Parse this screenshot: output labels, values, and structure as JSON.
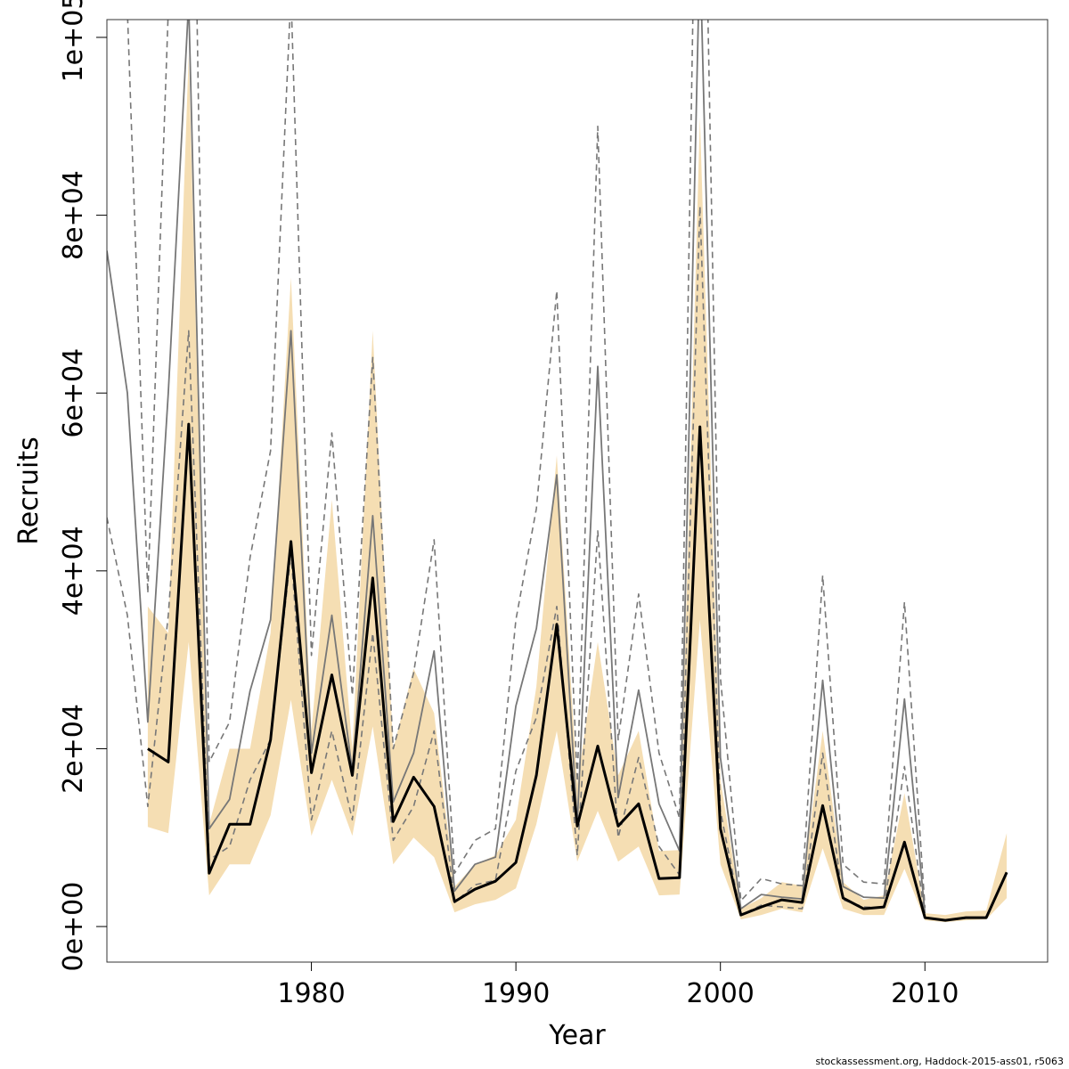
{
  "chart_data": {
    "type": "line",
    "xlabel": "Year",
    "ylabel": "Recruits",
    "xlim": [
      1970,
      2016
    ],
    "ylim": [
      -4000,
      102000
    ],
    "x_ticks": [
      1980,
      1990,
      2000,
      2010
    ],
    "x_tick_labels": [
      "1980",
      "1990",
      "2000",
      "2010"
    ],
    "y_ticks": [
      0,
      20000,
      40000,
      60000,
      80000,
      100000
    ],
    "y_tick_labels": [
      "0e+00",
      "2e+04",
      "4e+04",
      "6e+04",
      "8e+04",
      "1e+05"
    ],
    "grid": false,
    "legend": "none",
    "colors": {
      "band": "#f5deb3",
      "estimate": "#000000",
      "previous": "#777777",
      "previous_ci": "#777777"
    },
    "band": {
      "x": [
        1972,
        1973,
        1974,
        1975,
        1976,
        1977,
        1978,
        1979,
        1980,
        1981,
        1982,
        1983,
        1984,
        1985,
        1986,
        1987,
        1988,
        1989,
        1990,
        1991,
        1992,
        1993,
        1994,
        1995,
        1996,
        1997,
        1998,
        1999,
        2000,
        2001,
        2002,
        2003,
        2004,
        2005,
        2006,
        2007,
        2008,
        2009,
        2010,
        2011,
        2012,
        2013,
        2014
      ],
      "lower": [
        11200,
        10500,
        32000,
        3500,
        7000,
        7000,
        12500,
        25500,
        10200,
        16500,
        10200,
        22500,
        7000,
        10000,
        7800,
        1600,
        2500,
        3000,
        4300,
        11500,
        22000,
        7300,
        13000,
        7300,
        9000,
        3500,
        3600,
        34500,
        7000,
        800,
        1300,
        2000,
        1600,
        8800,
        2000,
        1300,
        1300,
        6500,
        700,
        500,
        700,
        800,
        3200
      ],
      "upper": [
        36000,
        33000,
        98000,
        11500,
        20000,
        20000,
        33000,
        73000,
        22000,
        48000,
        20000,
        67000,
        20000,
        29000,
        24000,
        4500,
        7000,
        8000,
        12000,
        27000,
        53000,
        16000,
        32000,
        17000,
        22000,
        8500,
        8600,
        91000,
        16500,
        2000,
        3200,
        5000,
        4600,
        22000,
        5000,
        3000,
        3500,
        15000,
        1500,
        1300,
        1700,
        1800,
        10500
      ]
    },
    "series": [
      {
        "x": [
          1972,
          1973,
          1974,
          1975,
          1976,
          1977,
          1978,
          1979,
          1980,
          1981,
          1982,
          1983,
          1984,
          1985,
          1986,
          1987,
          1988,
          1989,
          1990,
          1991,
          1992,
          1993,
          1994,
          1995,
          1996,
          1997,
          1998,
          1999,
          2000,
          2001,
          2002,
          2003,
          2004,
          2005,
          2006,
          2007,
          2008,
          2009,
          2010,
          2011,
          2012,
          2013,
          2014
        ],
        "values": [
          20000,
          18500,
          56500,
          6000,
          11500,
          11500,
          21000,
          43300,
          17300,
          28300,
          17000,
          39200,
          11800,
          16800,
          13500,
          2800,
          4200,
          5100,
          7200,
          17000,
          34000,
          11300,
          20300,
          11300,
          13800,
          5400,
          5500,
          56200,
          11000,
          1300,
          2200,
          3000,
          2700,
          13600,
          3200,
          2000,
          2200,
          9500,
          1000,
          700,
          1000,
          1000,
          6100
        ]
      },
      {
        "x": [
          1970,
          1971,
          1972,
          1973,
          1974,
          1975,
          1976,
          1977,
          1978,
          1979,
          1980,
          1981,
          1982,
          1983,
          1984,
          1985,
          1986,
          1987,
          1988,
          1989,
          1990,
          1991,
          1992,
          1993,
          1994,
          1995,
          1996,
          1997,
          1998,
          1999,
          2000,
          2001,
          2002,
          2003,
          2004,
          2005,
          2006,
          2007,
          2008,
          2009,
          2010
        ],
        "values": [
          76000,
          60000,
          23000,
          60000,
          104000,
          11000,
          14300,
          26500,
          34500,
          67000,
          19500,
          35000,
          17500,
          46200,
          14000,
          19500,
          31000,
          4000,
          7000,
          7800,
          24800,
          33500,
          50800,
          11500,
          63000,
          14500,
          26600,
          13800,
          8500,
          110000,
          19000,
          2000,
          3600,
          3300,
          3100,
          27700,
          4500,
          3300,
          3200,
          25600,
          1500
        ]
      },
      {
        "x": [
          1970,
          1971,
          1972,
          1973,
          1974,
          1975,
          1976,
          1977,
          1978,
          1979,
          1980,
          1981,
          1982,
          1983,
          1984,
          1985,
          1986,
          1987,
          1988,
          1989,
          1990,
          1991,
          1992,
          1993,
          1994,
          1995,
          1996,
          1997,
          1998,
          1999,
          2000,
          2001,
          2002,
          2003,
          2004,
          2005,
          2006,
          2007,
          2008,
          2009,
          2010
        ],
        "values": [
          46000,
          35000,
          13500,
          35000,
          67000,
          7500,
          9000,
          16500,
          21000,
          42000,
          12000,
          22000,
          12000,
          33000,
          9700,
          13500,
          22000,
          2700,
          4700,
          5200,
          17500,
          23500,
          36000,
          8000,
          44500,
          10000,
          19000,
          9000,
          5800,
          81000,
          13000,
          1300,
          2400,
          2200,
          2000,
          19500,
          3000,
          2200,
          2100,
          18000,
          1000
        ]
      },
      {
        "x": [
          1970,
          1971,
          1972,
          1973,
          1974,
          1975,
          1976,
          1977,
          1978,
          1979,
          1980,
          1981,
          1982,
          1983,
          1984,
          1985,
          1986,
          1987,
          1988,
          1989,
          1990,
          1991,
          1992,
          1993,
          1994,
          1995,
          1996,
          1997,
          1998,
          1999,
          2000,
          2001,
          2002,
          2003,
          2004,
          2005,
          2006,
          2007,
          2008,
          2009,
          2010
        ],
        "values": [
          125000,
          103000,
          37500,
          103000,
          160000,
          18500,
          23000,
          41500,
          53500,
          105000,
          30500,
          55500,
          26000,
          64000,
          20000,
          28500,
          43500,
          6000,
          9700,
          11000,
          34500,
          47000,
          71500,
          16300,
          90000,
          21000,
          37400,
          19500,
          12200,
          150000,
          28000,
          2900,
          5400,
          4800,
          4600,
          39500,
          7000,
          5000,
          4800,
          36500,
          2100
        ]
      }
    ]
  },
  "footer_text": "stockassessment.org, Haddock-2015-ass01, r5063"
}
